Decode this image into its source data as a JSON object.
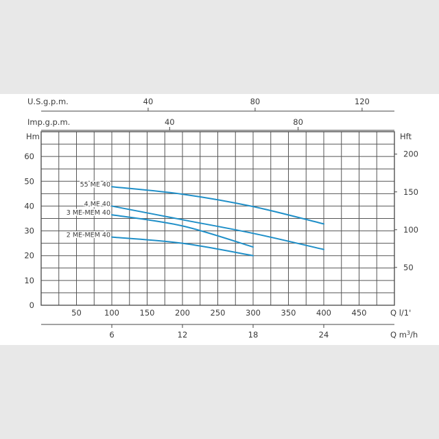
{
  "chart_data": {
    "type": "line",
    "title": "",
    "grid": true,
    "axes": {
      "usgpm": {
        "label": "U.S.g.p.m.",
        "ticks": [
          40,
          80,
          120
        ]
      },
      "impgpm": {
        "label": "Imp.g.p.m.",
        "ticks": [
          40,
          80
        ]
      },
      "left": {
        "label": "Hm",
        "range": [
          0,
          70
        ],
        "ticks": [
          0,
          10,
          20,
          30,
          40,
          50,
          60
        ]
      },
      "right": {
        "label": "Hft",
        "ticks": [
          50,
          100,
          150,
          200
        ]
      },
      "bottom_l": {
        "label": "Q l/1'",
        "range": [
          0,
          500
        ],
        "ticks": [
          50,
          100,
          150,
          200,
          250,
          300,
          350,
          400,
          450
        ]
      },
      "bottom_m3": {
        "label": "Q m³/h",
        "ticks": [
          6,
          12,
          18,
          24
        ]
      }
    },
    "series": [
      {
        "name": "55 ME 40",
        "color": "#1f8fc8",
        "x": [
          100,
          200,
          300,
          400
        ],
        "y": [
          47.8,
          44.8,
          39.8,
          32.8
        ]
      },
      {
        "name": "4 ME 40",
        "color": "#1f8fc8",
        "x": [
          100,
          200,
          300,
          400
        ],
        "y": [
          40,
          34.5,
          29,
          22.5
        ]
      },
      {
        "name": "3 ME-MEM 40",
        "color": "#1f8fc8",
        "x": [
          100,
          200,
          300
        ],
        "y": [
          36.5,
          32,
          23.5
        ]
      },
      {
        "name": "2 ME-MEM 40",
        "color": "#1f8fc8",
        "x": [
          100,
          200,
          300
        ],
        "y": [
          27.5,
          25,
          20
        ]
      }
    ]
  }
}
